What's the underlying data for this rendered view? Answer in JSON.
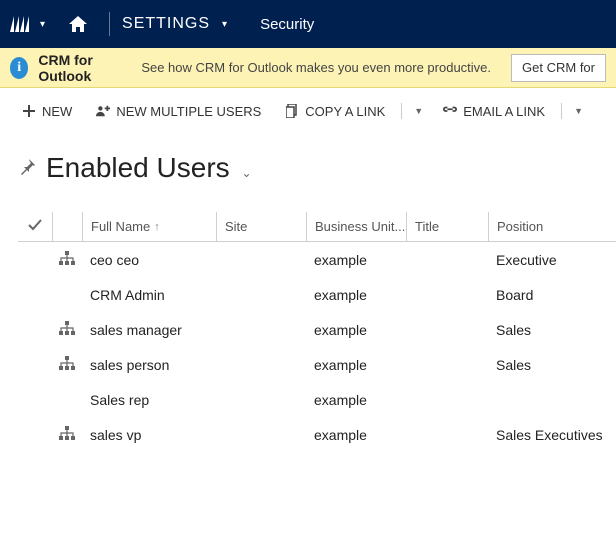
{
  "nav": {
    "settings_label": "SETTINGS",
    "area_label": "Security"
  },
  "notification": {
    "title": "CRM for Outlook",
    "text": "See how CRM for Outlook makes you even more productive.",
    "button_label": "Get CRM for"
  },
  "toolbar": {
    "new_label": "NEW",
    "new_multiple_label": "NEW MULTIPLE USERS",
    "copy_link_label": "COPY A LINK",
    "email_link_label": "EMAIL A LINK"
  },
  "view": {
    "title": "Enabled Users"
  },
  "grid": {
    "columns": {
      "full_name": "Full Name",
      "site": "Site",
      "business_unit": "Business Unit...",
      "title": "Title",
      "position": "Position"
    },
    "rows": [
      {
        "hier": true,
        "name": "ceo ceo",
        "site": "",
        "bu": "example",
        "title": "",
        "position": "Executive"
      },
      {
        "hier": false,
        "name": "CRM Admin",
        "site": "",
        "bu": "example",
        "title": "",
        "position": "Board"
      },
      {
        "hier": true,
        "name": "sales manager",
        "site": "",
        "bu": "example",
        "title": "",
        "position": "Sales"
      },
      {
        "hier": true,
        "name": "sales person",
        "site": "",
        "bu": "example",
        "title": "",
        "position": "Sales"
      },
      {
        "hier": false,
        "name": "Sales rep",
        "site": "",
        "bu": "example",
        "title": "",
        "position": ""
      },
      {
        "hier": true,
        "name": "sales vp",
        "site": "",
        "bu": "example",
        "title": "",
        "position": "Sales Executives"
      }
    ]
  },
  "colors": {
    "navbar_bg": "#002050",
    "notif_bg": "#fdf3b5",
    "notif_icon_bg": "#2a8dd4"
  }
}
